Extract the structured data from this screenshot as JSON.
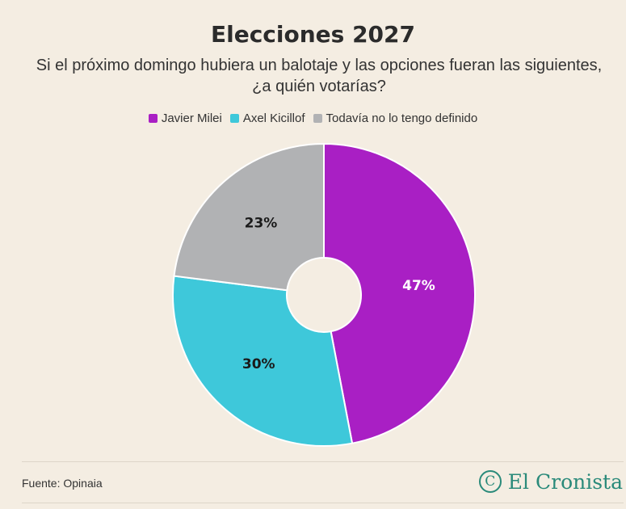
{
  "chart_data": {
    "type": "pie",
    "title": "Elecciones 2027",
    "subtitle": "Si el próximo domingo hubiera un balotaje y las opciones fueran las siguientes, ¿a quién votarías?",
    "categories": [
      "Javier Milei",
      "Axel Kicillof",
      "Todavía no lo tengo definido"
    ],
    "values": [
      47,
      30,
      23
    ],
    "labels": [
      "47%",
      "30%",
      "23%"
    ],
    "colors": [
      "#a91fc4",
      "#3ec8da",
      "#b1b2b4"
    ],
    "label_colors": [
      "#ffffff",
      "#1a1a1a",
      "#1a1a1a"
    ],
    "legend_position": "top-center",
    "donut": true
  },
  "footer": {
    "source": "Fuente: Opinaia",
    "logo_mark": "C",
    "logo_text": "El Cronista"
  }
}
